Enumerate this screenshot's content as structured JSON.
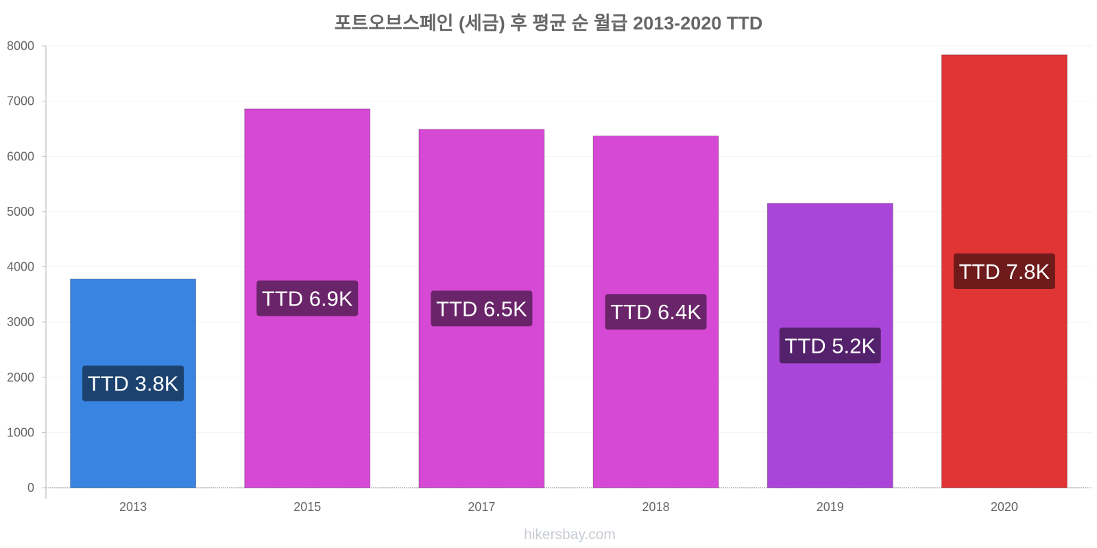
{
  "chart_data": {
    "type": "bar",
    "title": "포트오브스페인 (세금) 후 평균 순 월급 2013-2020 TTD",
    "categories": [
      "2013",
      "2015",
      "2017",
      "2018",
      "2019",
      "2020"
    ],
    "values": [
      3780,
      6860,
      6490,
      6370,
      5150,
      7840
    ],
    "data_labels": [
      "TTD 3.8K",
      "TTD 6.9K",
      "TTD 6.5K",
      "TTD 6.4K",
      "TTD 5.2K",
      "TTD 7.8K"
    ],
    "bar_colors": [
      "#3884e0",
      "#d649d5",
      "#d649d5",
      "#d649d5",
      "#a946d9",
      "#e13535"
    ],
    "label_colors": [
      "#1c426f",
      "#6a246a",
      "#6a246a",
      "#6a246a",
      "#54226c",
      "#701b1b"
    ],
    "ylim": [
      0,
      8000
    ],
    "yticks": [
      "0",
      "1000",
      "2000",
      "3000",
      "4000",
      "5000",
      "6000",
      "7000",
      "8000"
    ],
    "xlabel": "",
    "ylabel": "",
    "grid": true,
    "source": "hikersbay.com"
  }
}
